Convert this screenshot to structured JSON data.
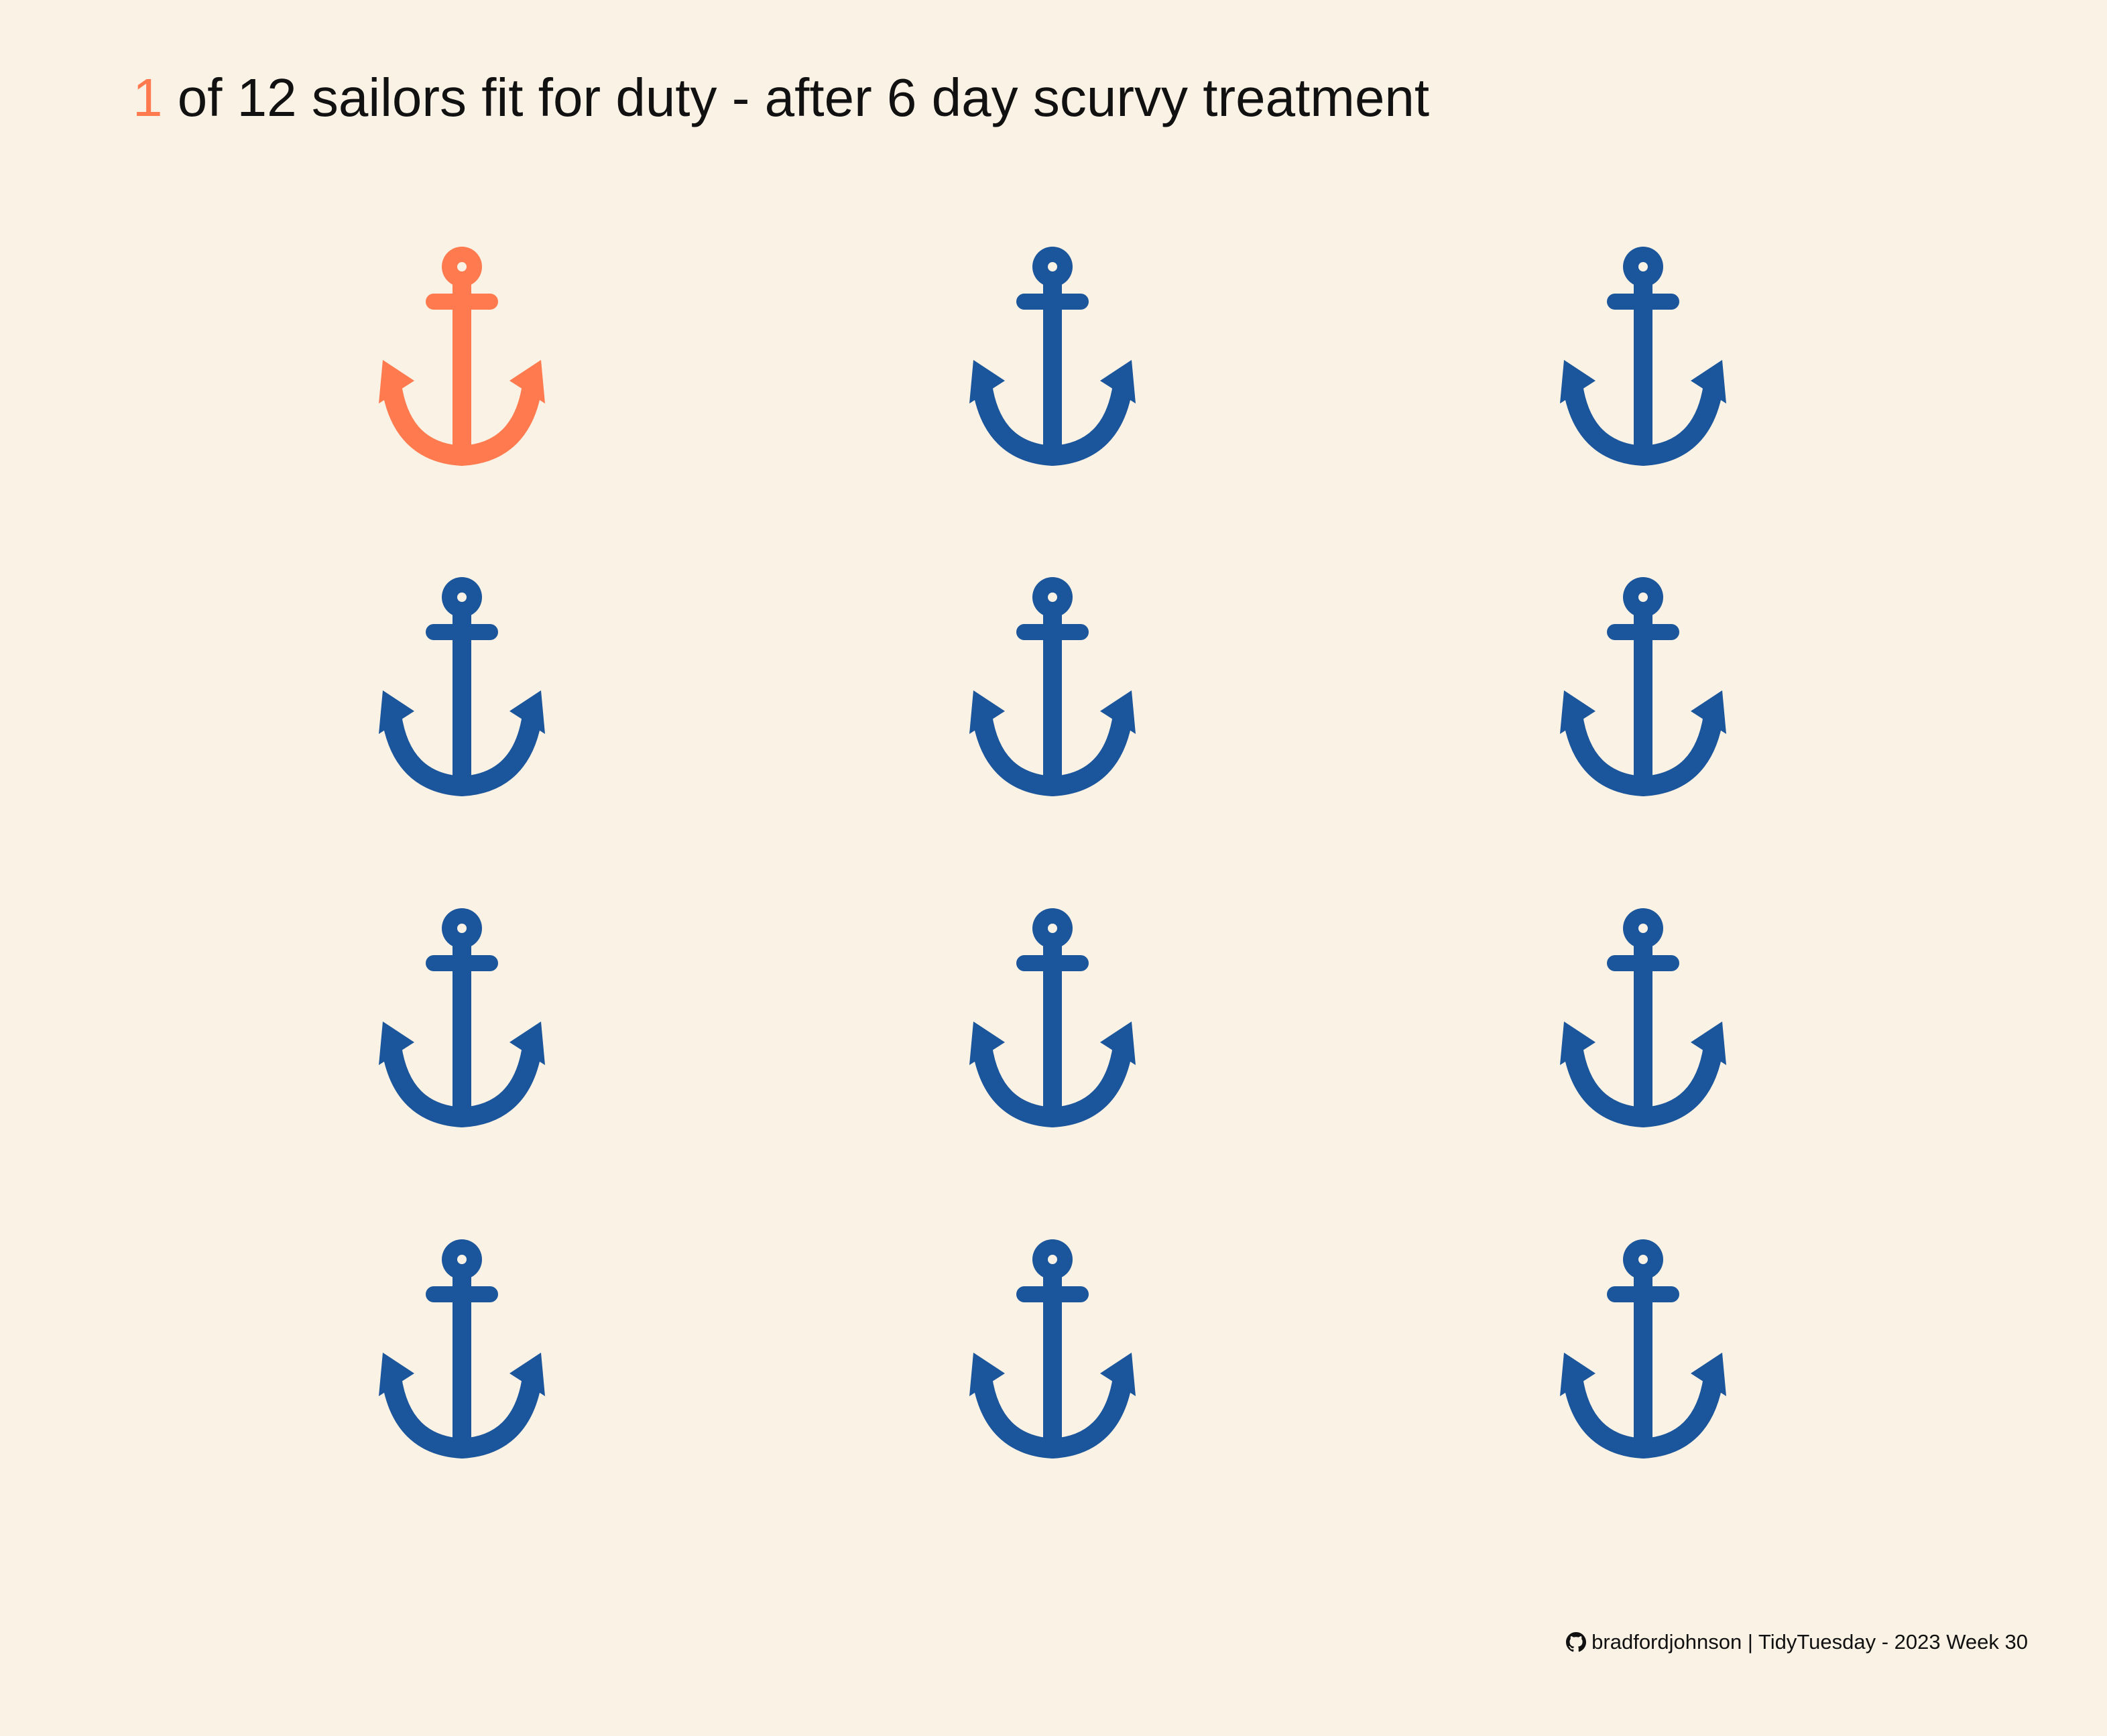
{
  "chart_data": {
    "type": "pictogram",
    "title": {
      "highlight": "1",
      "rest": " of 12 sailors fit for duty - after 6 day scurvy treatment"
    },
    "total": 12,
    "fit": 1,
    "columns": 3,
    "rows": 4,
    "colors": {
      "fit": "#FF7A4F",
      "not_fit": "#1B559B",
      "background": "#FAF3E5"
    },
    "icon": "anchor-icon"
  },
  "caption": {
    "icon": "github-icon",
    "text": "bradfordjohnson | TidyTuesday - 2023 Week 30"
  }
}
